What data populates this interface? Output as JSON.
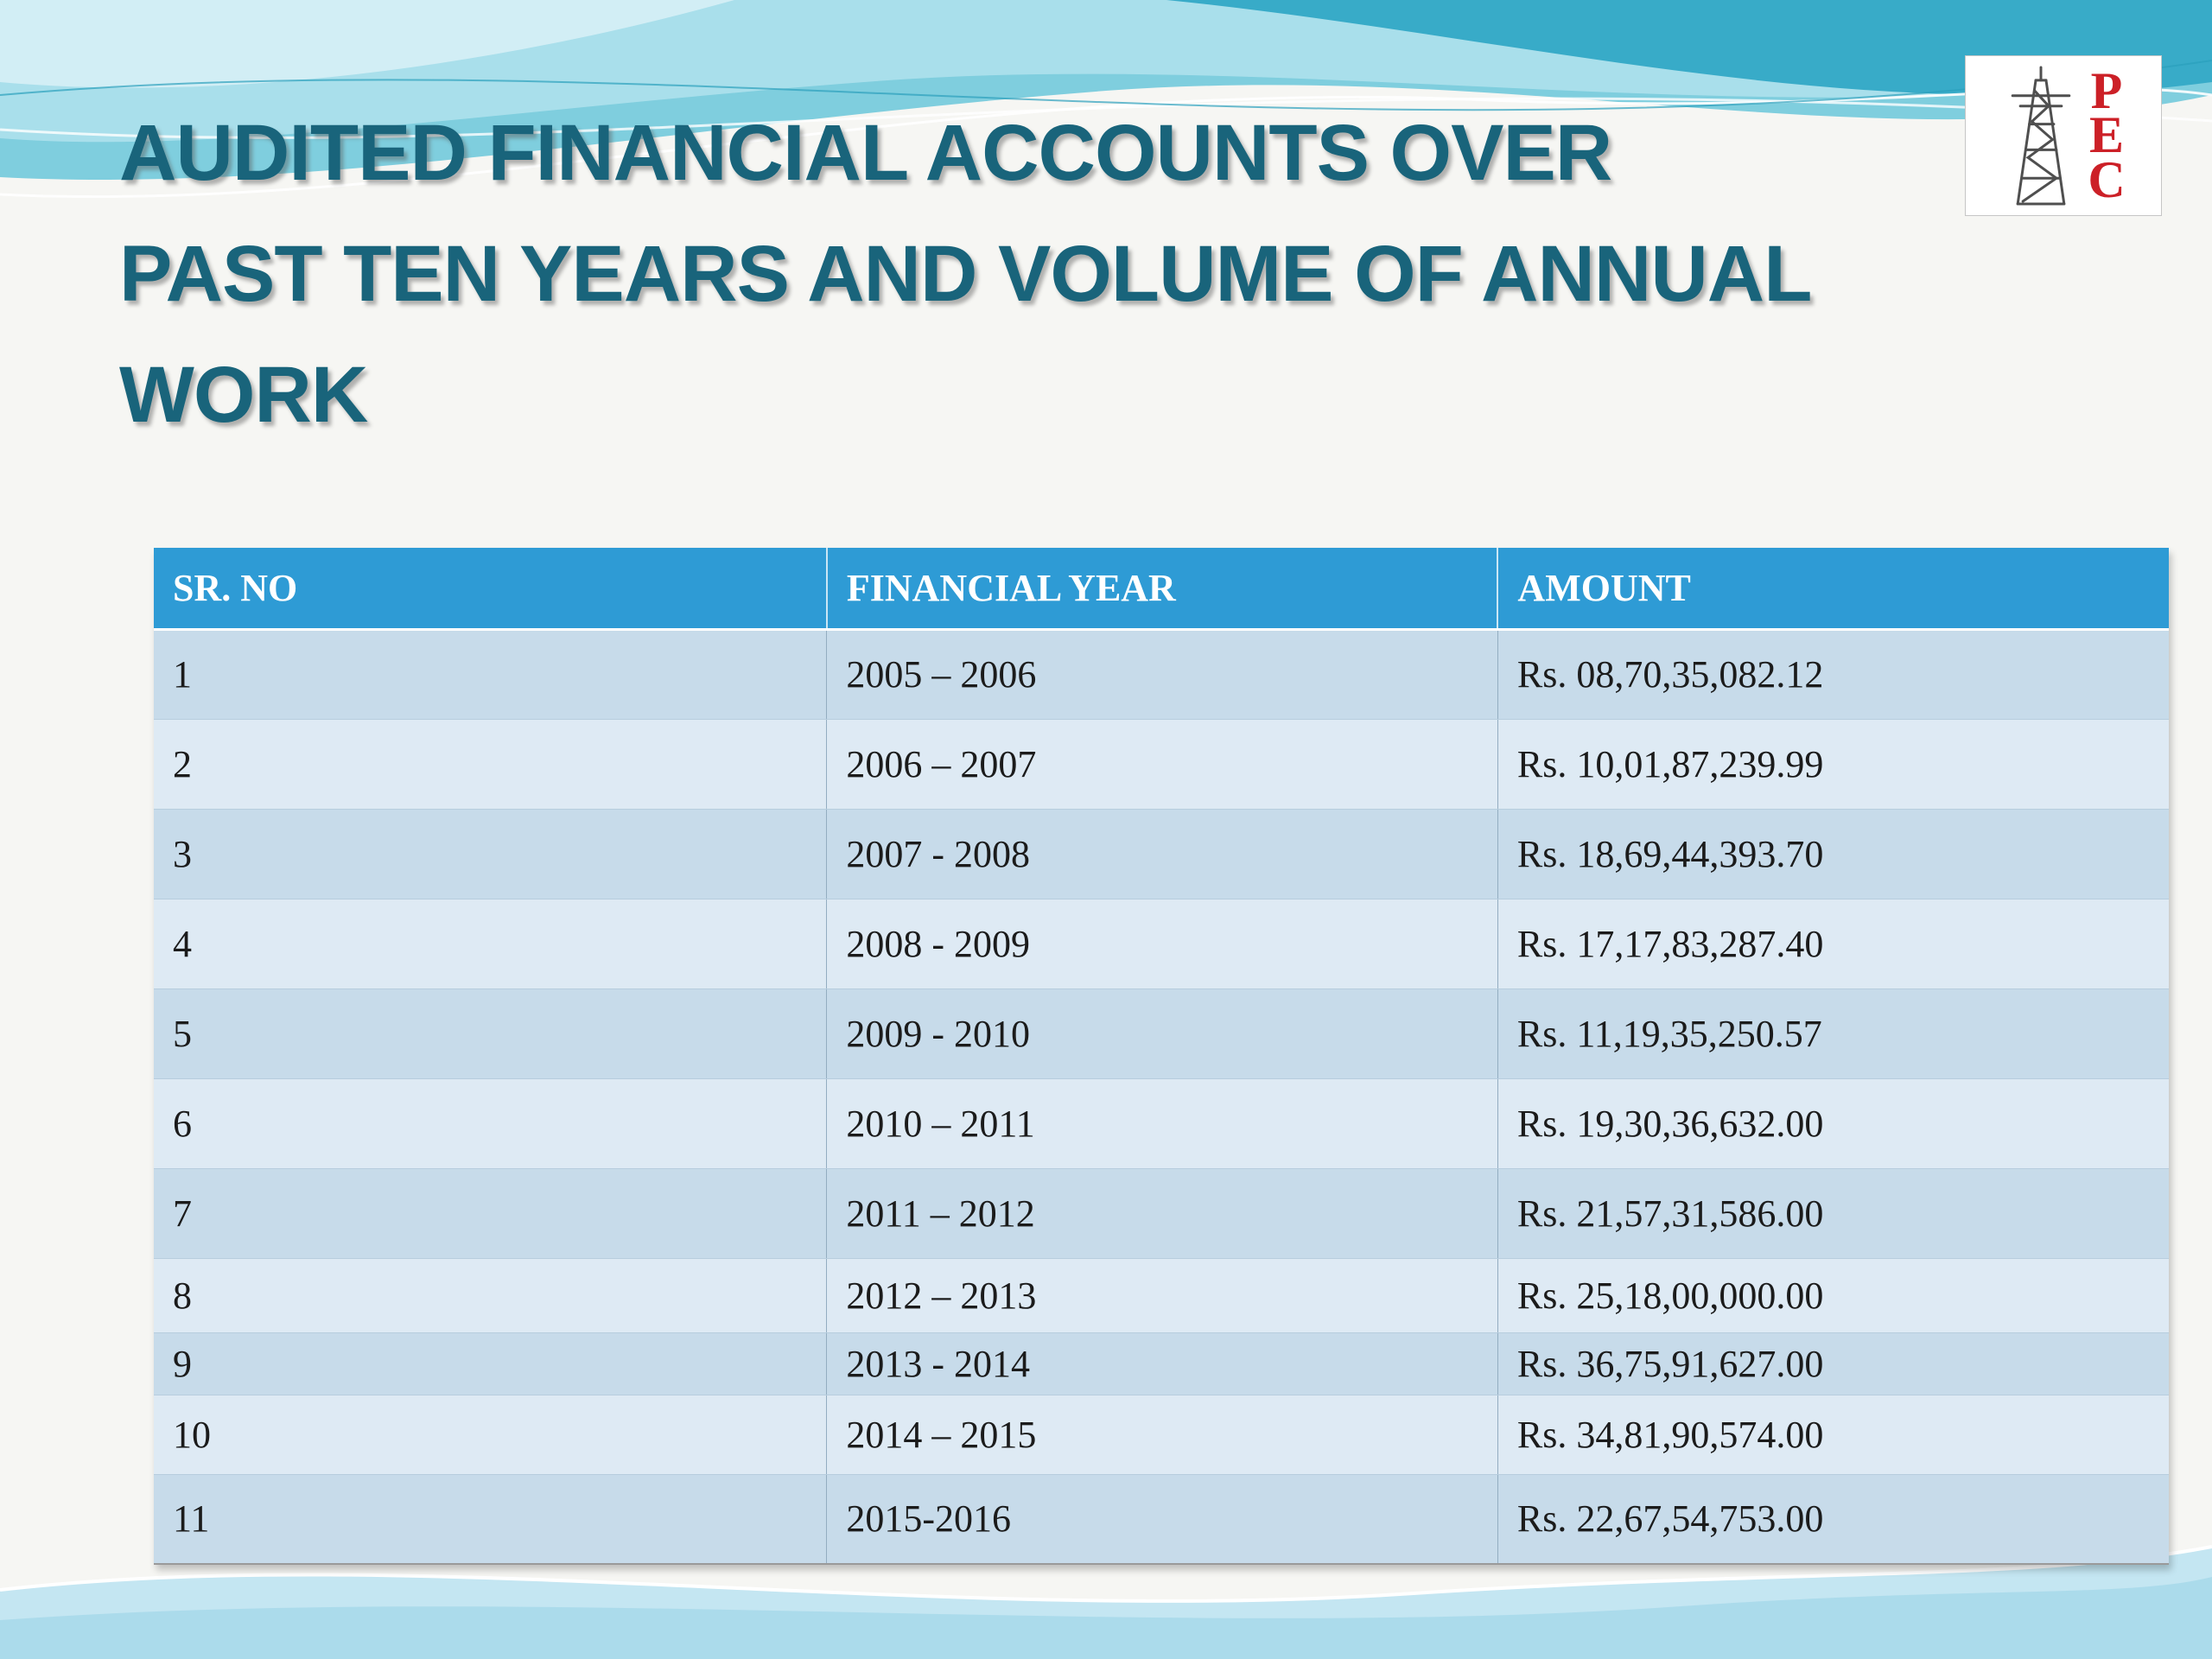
{
  "slide": {
    "title_lines": [
      "AUDITED FINANCIAL ACCOUNTS OVER",
      "PAST TEN YEARS AND VOLUME OF ANNUAL",
      "WORK"
    ]
  },
  "logo": {
    "letters": [
      "P",
      "E",
      "C"
    ]
  },
  "table": {
    "headers": [
      "SR. NO",
      "FINANCIAL YEAR",
      "AMOUNT"
    ],
    "rows": [
      {
        "sr": "1",
        "year": "2005 – 2006",
        "amount": "Rs. 08,70,35,082.12"
      },
      {
        "sr": "2",
        "year": "2006 – 2007",
        "amount": "Rs. 10,01,87,239.99"
      },
      {
        "sr": "3",
        "year": "2007 - 2008",
        "amount": "Rs. 18,69,44,393.70"
      },
      {
        "sr": "4",
        "year": "2008 - 2009",
        "amount": "Rs. 17,17,83,287.40"
      },
      {
        "sr": "5",
        "year": "2009 - 2010",
        "amount": "Rs. 11,19,35,250.57"
      },
      {
        "sr": "6",
        "year": "2010 – 2011",
        "amount": "Rs. 19,30,36,632.00"
      },
      {
        "sr": "7",
        "year": "2011 – 2012",
        "amount": "Rs. 21,57,31,586.00"
      },
      {
        "sr": "8",
        "year": "2012 – 2013",
        "amount": "Rs. 25,18,00,000.00"
      },
      {
        "sr": "9",
        "year": "2013  - 2014",
        "amount": "Rs. 36,75,91,627.00"
      },
      {
        "sr": "10",
        "year": "2014 – 2015",
        "amount": "Rs. 34,81,90,574.00"
      },
      {
        "sr": "11",
        "year": "2015-2016",
        "amount": "Rs. 22,67,54,753.00"
      }
    ]
  },
  "colors": {
    "header_bg": "#2E9BD5",
    "row_dark": "#C7DBEA",
    "row_light": "#DEEAF4",
    "title_text": "#19647B",
    "logo_red": "#CC2027",
    "wave_teal": "#38ABC8"
  }
}
